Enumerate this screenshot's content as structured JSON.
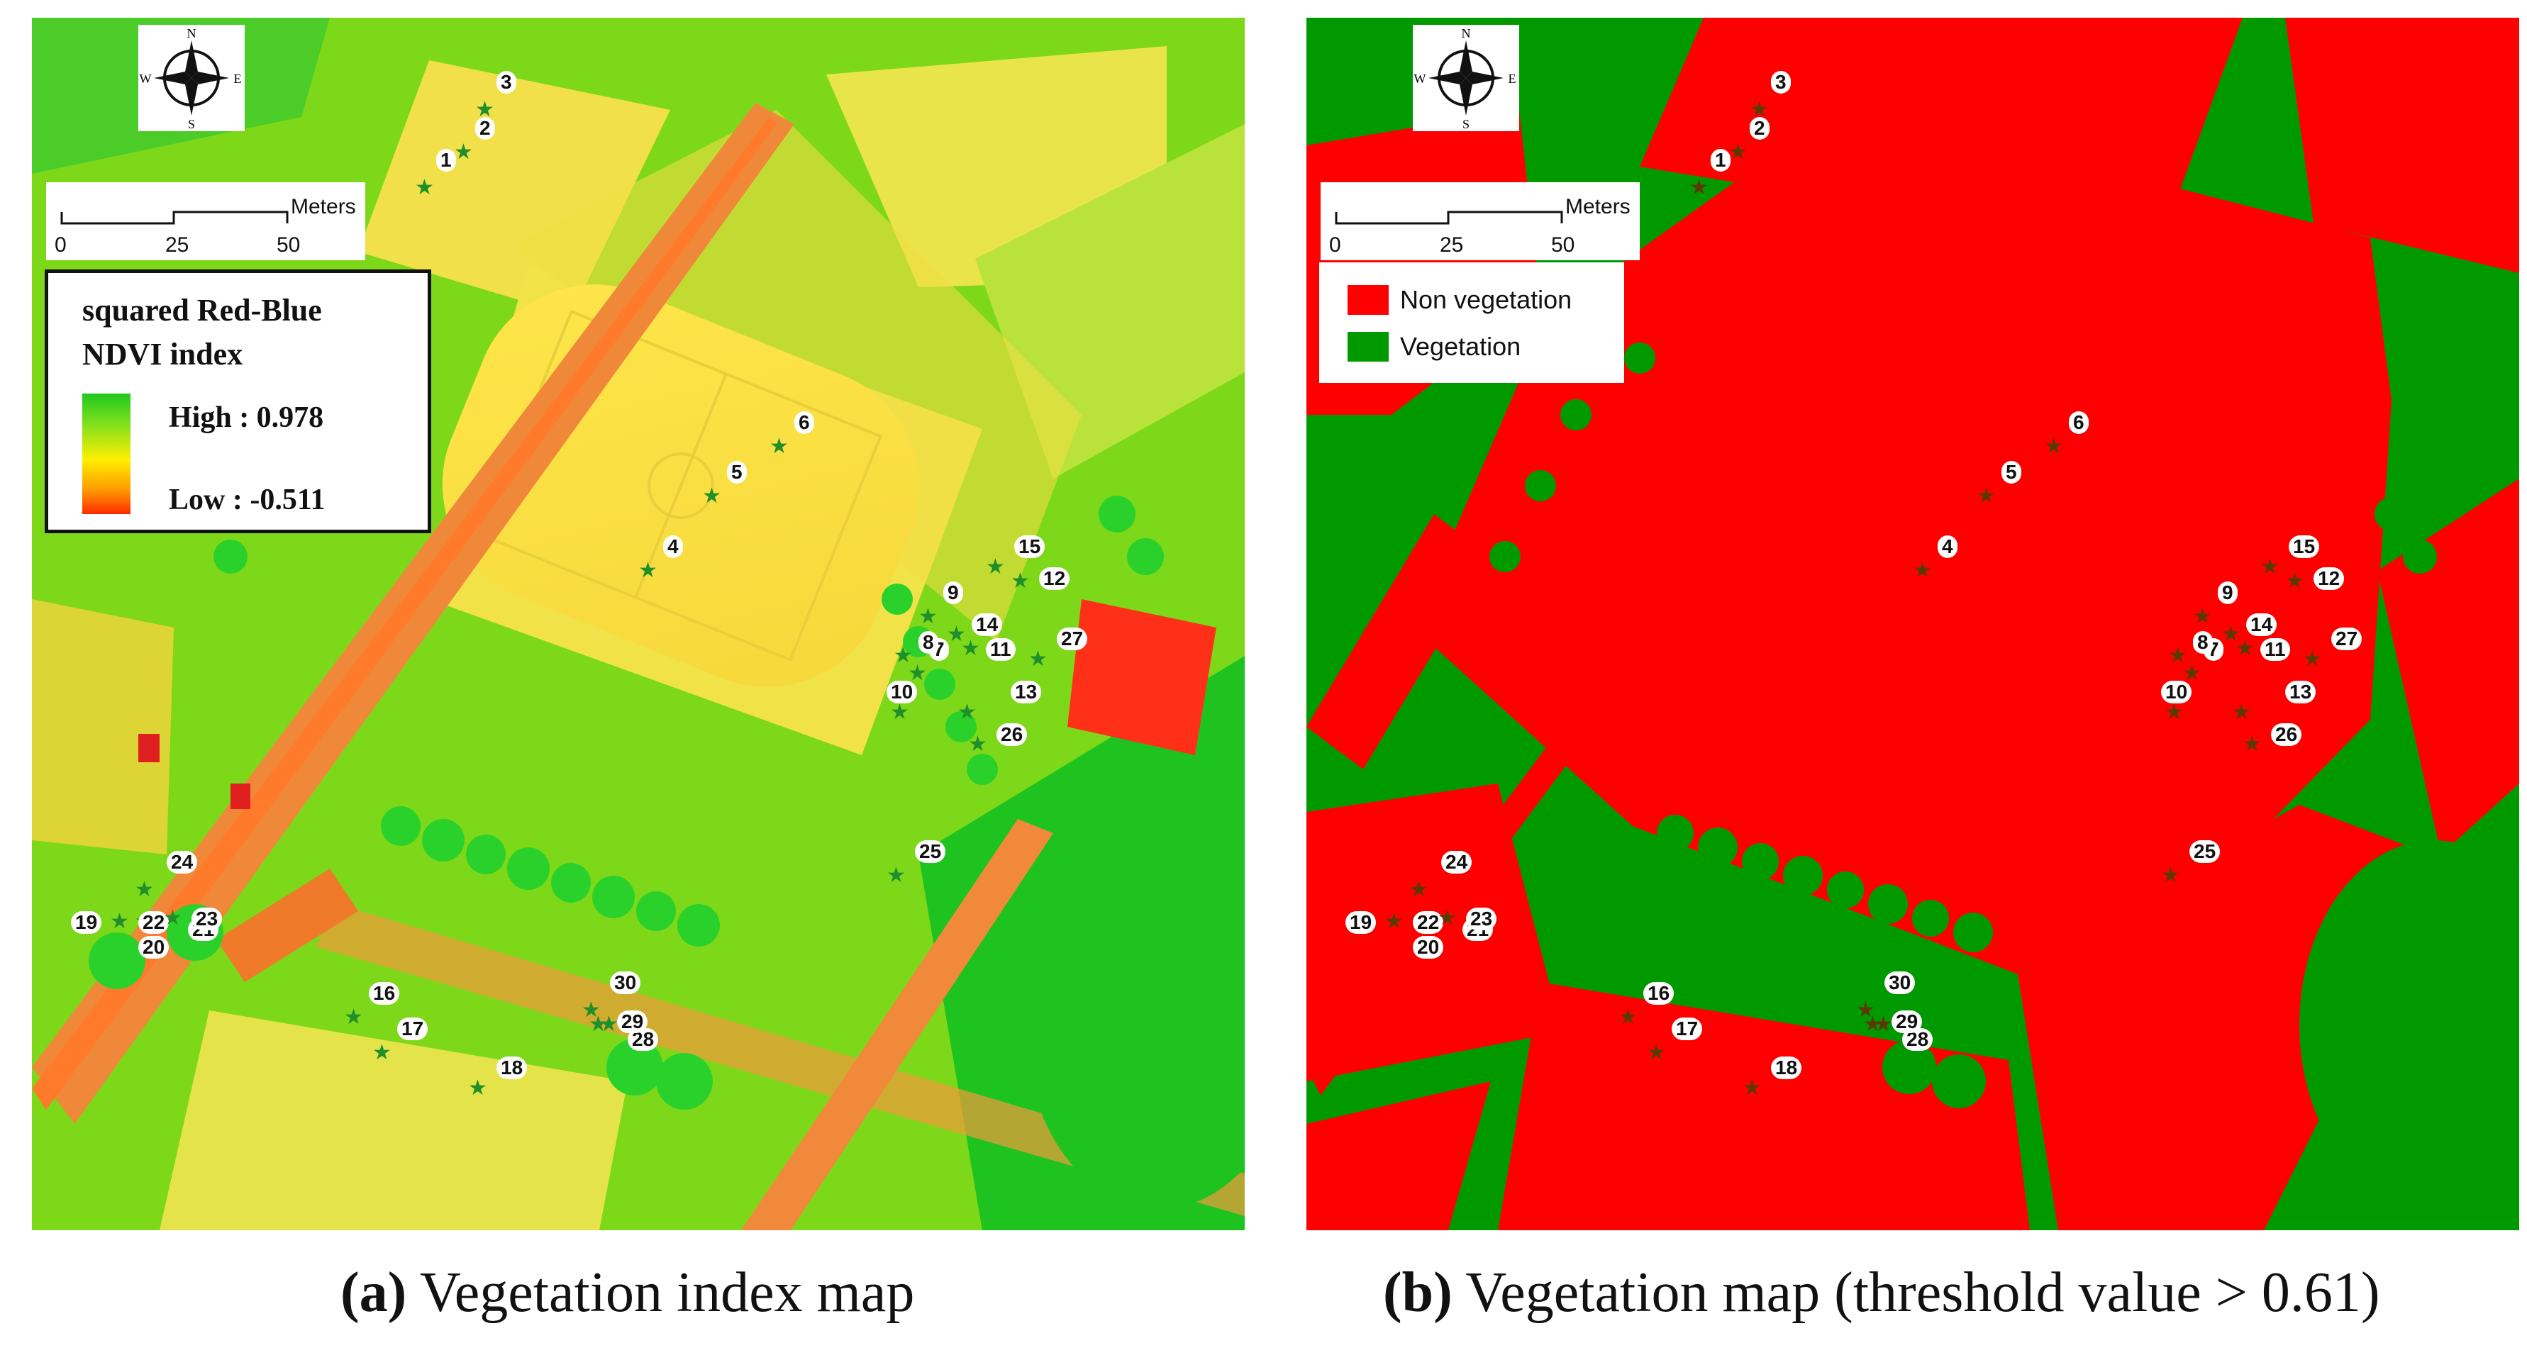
{
  "panels": [
    {
      "id": "a",
      "compass": {
        "n": "N",
        "s": "S",
        "e": "E",
        "w": "W"
      },
      "scalebar": {
        "ticks": [
          "0",
          "25",
          "50"
        ],
        "unit": "Meters"
      },
      "legend": {
        "title": "squared Red-Blue NDVI index",
        "high_label": "High : 0.978",
        "low_label": "Low  : -0.511",
        "ramp_colors": [
          "#1ec81e",
          "#ffee00",
          "#ff2a00"
        ]
      },
      "caption_letter": "(a)",
      "caption_text": " Vegetation index map"
    },
    {
      "id": "b",
      "compass": {
        "n": "N",
        "s": "S",
        "e": "E",
        "w": "W"
      },
      "scalebar": {
        "ticks": [
          "0",
          "25",
          "50"
        ],
        "unit": "Meters"
      },
      "legend": {
        "items": [
          {
            "label": "Non vegetation",
            "color": "#ff0000"
          },
          {
            "label": "Vegetation",
            "color": "#009900"
          }
        ]
      },
      "caption_letter": "(b)",
      "caption_text": " Vegetation map (threshold value > 0.61)"
    }
  ],
  "sample_points": [
    "1",
    "2",
    "3",
    "4",
    "5",
    "6",
    "7",
    "8",
    "9",
    "10",
    "11",
    "12",
    "13",
    "14",
    "15",
    "16",
    "17",
    "18",
    "19",
    "20",
    "21",
    "22",
    "23",
    "24",
    "25",
    "26",
    "27",
    "28",
    "29",
    "30"
  ],
  "colors": {
    "index_low": "#ff2a00",
    "index_mid": "#ffee00",
    "index_high": "#1ec81e",
    "non_vegetation": "#ff0000",
    "vegetation": "#009900"
  }
}
